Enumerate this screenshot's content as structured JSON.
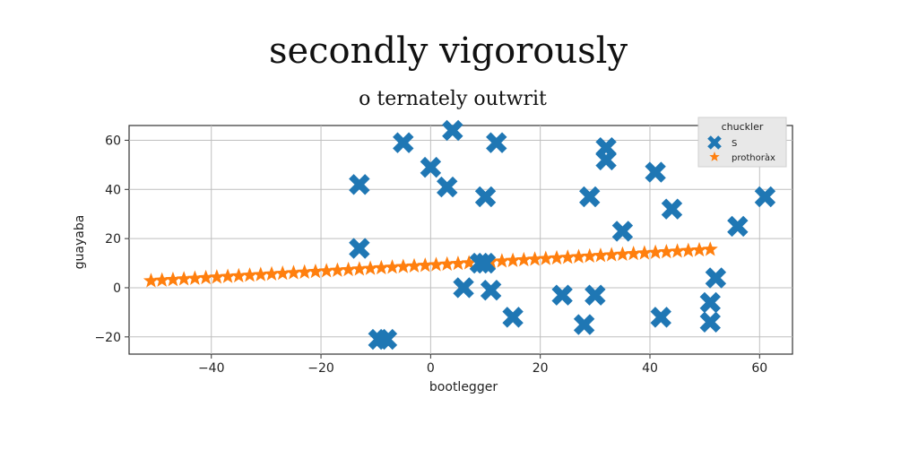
{
  "chart_data": {
    "type": "scatter",
    "title": "secondly vigorously",
    "subtitle": "o ternately outwrit",
    "xlabel": "bootlegger",
    "ylabel": "guayaba",
    "xlim": [
      -55,
      66
    ],
    "ylim": [
      -27,
      66
    ],
    "x_ticks": [
      "−40",
      "−20",
      "0",
      "20",
      "40",
      "60"
    ],
    "y_ticks": [
      "−20",
      "0",
      "20",
      "40",
      "60"
    ],
    "x_tick_values": [
      -40,
      -20,
      0,
      20,
      40,
      60
    ],
    "y_tick_values": [
      -20,
      0,
      20,
      40,
      60
    ],
    "grid": true,
    "legend_title": "chuckler",
    "legend_position": "top-right",
    "series": [
      {
        "name": "S",
        "marker": "x",
        "color": "#1f77b4",
        "points": [
          [
            -13,
            42
          ],
          [
            -13,
            16
          ],
          [
            -9.5,
            -21
          ],
          [
            -8,
            -21
          ],
          [
            -5,
            59
          ],
          [
            0,
            49
          ],
          [
            3,
            41
          ],
          [
            4,
            64
          ],
          [
            6,
            0
          ],
          [
            9,
            10
          ],
          [
            10,
            10
          ],
          [
            10,
            37
          ],
          [
            11,
            -1
          ],
          [
            12,
            59
          ],
          [
            15,
            -12
          ],
          [
            24,
            -3
          ],
          [
            28,
            -15
          ],
          [
            29,
            37
          ],
          [
            30,
            -3
          ],
          [
            32,
            57
          ],
          [
            32,
            52
          ],
          [
            35,
            23
          ],
          [
            41,
            47
          ],
          [
            42,
            -12
          ],
          [
            44,
            32
          ],
          [
            51,
            -6
          ],
          [
            51,
            -14
          ],
          [
            52,
            4
          ],
          [
            56,
            25
          ],
          [
            61,
            37
          ]
        ]
      },
      {
        "name": "prothoràx",
        "marker": "star",
        "color": "#ff7f0e",
        "line": {
          "x_start": -51,
          "x_end": 51,
          "count": 52,
          "y_start": 2.8,
          "y_end": 15.6
        }
      }
    ]
  }
}
